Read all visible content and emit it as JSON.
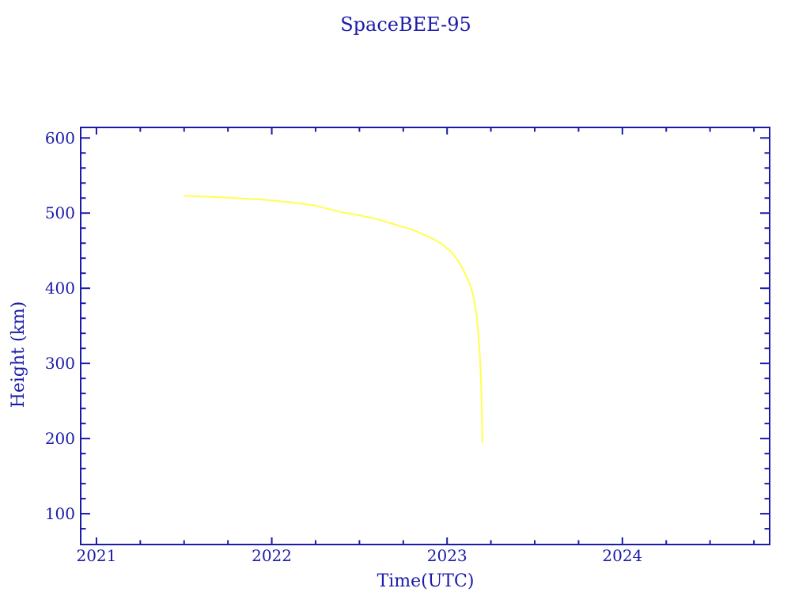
{
  "colors": {
    "axis_blue": "#1b1baa",
    "curve_yellow": "#ffff4d",
    "background": "#ffffff"
  },
  "chart_data": {
    "type": "line",
    "title": "SpaceBEE-95",
    "xlabel": "Time(UTC)",
    "ylabel": "Height (km)",
    "xlim": [
      2020.91,
      2024.84
    ],
    "ylim": [
      59,
      614
    ],
    "x_major_ticks": [
      2021,
      2022,
      2023,
      2024
    ],
    "x_minor_step": 0.25,
    "y_major_ticks": [
      100,
      200,
      300,
      400,
      500,
      600
    ],
    "y_minor_step": 20,
    "grid": false,
    "legend_position": "none",
    "series": [
      {
        "name": "SpaceBEE-95 height",
        "color": "#ffff4d",
        "points": [
          [
            2021.505,
            523
          ],
          [
            2021.62,
            522
          ],
          [
            2021.75,
            520.5
          ],
          [
            2021.88,
            519
          ],
          [
            2022.0,
            517
          ],
          [
            2022.12,
            514
          ],
          [
            2022.25,
            510
          ],
          [
            2022.38,
            502
          ],
          [
            2022.5,
            497
          ],
          [
            2022.6,
            492
          ],
          [
            2022.7,
            485
          ],
          [
            2022.8,
            478
          ],
          [
            2022.9,
            468
          ],
          [
            2022.97,
            459
          ],
          [
            2023.03,
            447
          ],
          [
            2023.07,
            434
          ],
          [
            2023.1,
            421
          ],
          [
            2023.13,
            405
          ],
          [
            2023.15,
            390
          ],
          [
            2023.165,
            370
          ],
          [
            2023.175,
            348
          ],
          [
            2023.185,
            318
          ],
          [
            2023.192,
            285
          ],
          [
            2023.197,
            250
          ],
          [
            2023.2,
            215
          ],
          [
            2023.202,
            195
          ]
        ]
      }
    ]
  }
}
